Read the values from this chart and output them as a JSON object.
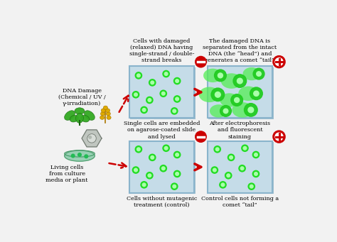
{
  "bg_color": "#f2f2f2",
  "box_bg": "#c5dce8",
  "box_border": "#8ab4cc",
  "box_shadow": "#a0c0d0",
  "text_top1": "Cells with damaged\n(relaxed) DNA having\nsingle-strand / double-\nstrand breaks",
  "text_top2": "The damaged DNA is\nseparated from the intact\nDNA (the “head”) and\ngenerates a comet “tail”.",
  "text_mid_left": "Single cells are embedded\non agarose-coated slide\nand lysed",
  "text_mid_right": "After electrophoresis\nand fluorescent\nstaining",
  "text_bot1": "Cells without mutagenic\ntreatment (control)",
  "text_bot2": "Control cells not forming a\ncomet “tail”",
  "text_dna": "DNA Damage\n(Chemical / UV /\nγ-irradiation)",
  "text_living": "Living cells\nfrom culture\nmedia or plant",
  "dot_color_outer": "#22dd22",
  "dot_color_inner": "#aaffaa",
  "comet_tail_color": "#44ee44",
  "comet_head_color": "#22bb22",
  "arrow_color": "#cc0000",
  "minus_fill": "#cc0000",
  "plus_stroke": "#cc0000",
  "plant_green": "#33aa22",
  "plant_dark": "#1a6611",
  "wheat_gold": "#ddaa00",
  "wheat_dark": "#aa7700",
  "cell_fill": "#b0b8b0",
  "cell_border": "#707870",
  "petri_fill": "#88ccaa",
  "petri_border": "#449966"
}
